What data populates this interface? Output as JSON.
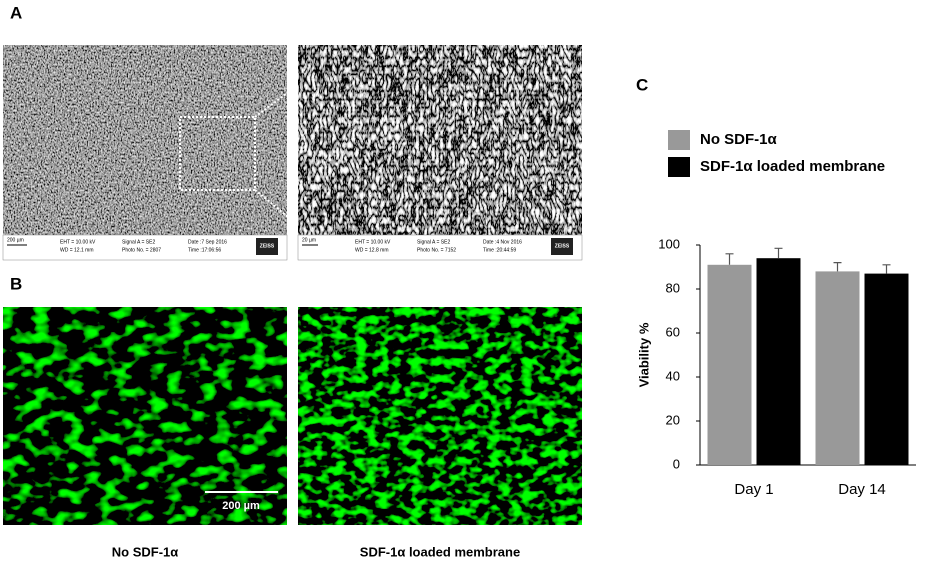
{
  "panels": {
    "a": "A",
    "b": "B",
    "c": "C"
  },
  "sem": [
    {
      "scale": "200 µm",
      "eht": "EHT = 10.00 kV",
      "wd": "WD = 12.1 mm",
      "signal": "Signal A = SE2",
      "photo": "Photo No. = 2807",
      "date": "Date :7 Sep 2016",
      "time": "Time :17:06:56",
      "brand": "ZEISS"
    },
    {
      "scale": "20 µm",
      "eht": "EHT = 10.00 kV",
      "wd": "WD = 12.8 mm",
      "signal": "Signal A = SE2",
      "photo": "Photo No. = 7152",
      "date": "Date :4 Nov 2016",
      "time": "Time :20:44:59",
      "brand": "ZEISS"
    }
  ],
  "fluorescence": {
    "scale": "200 µm",
    "captions": [
      "No SDF-1α",
      "SDF-1α  loaded membrane"
    ]
  },
  "chart_data": {
    "type": "bar",
    "ylabel": "Viability %",
    "categories": [
      "Day 1",
      "Day 14"
    ],
    "series": [
      {
        "name": "No SDF-1α",
        "color": "#999999",
        "values": [
          91,
          88
        ],
        "errors": [
          5,
          4
        ]
      },
      {
        "name": "SDF-1α  loaded membrane",
        "color": "#000000",
        "values": [
          94,
          87
        ],
        "errors": [
          4.5,
          4
        ]
      }
    ],
    "ylim": [
      0,
      100
    ],
    "yticks": [
      0,
      20,
      40,
      60,
      80,
      100
    ],
    "grid": false
  }
}
